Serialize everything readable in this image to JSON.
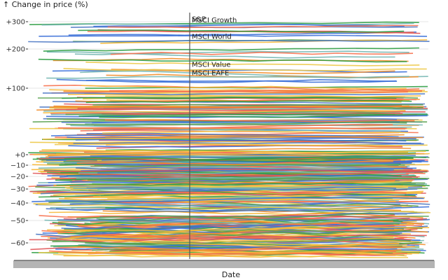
{
  "chart_data": {
    "type": "line",
    "title": "",
    "ylabel": "↑ Change in price (%)",
    "xlabel": "Date",
    "ylim": [
      -70,
      330
    ],
    "y_scale": "piecewise-compressed",
    "yticks": [
      {
        "value": 300,
        "label": "+300"
      },
      {
        "value": 200,
        "label": "+200"
      },
      {
        "value": 100,
        "label": "+100"
      },
      {
        "value": 0,
        "label": "+0"
      },
      {
        "value": -10,
        "label": "−10"
      },
      {
        "value": -20,
        "label": "−20"
      },
      {
        "value": -30,
        "label": "−30"
      },
      {
        "value": -40,
        "label": "−40"
      },
      {
        "value": -50,
        "label": "−50"
      },
      {
        "value": -60,
        "label": "−60"
      }
    ],
    "grid": true,
    "legend": "none",
    "x_tick_labels": "dense, illegible",
    "series_count_estimate": 400,
    "series_colors": [
      "#4e79c4",
      "#f28e2b",
      "#e15759",
      "#59a14f",
      "#76b7b2",
      "#edc948",
      "#f7714f",
      "#2f9e44",
      "#3a6fd8",
      "#f6b93b"
    ],
    "highlight_date_line": true,
    "annotations": [
      {
        "label": "S&P",
        "y": 310
      },
      {
        "label": "MSCI Growth",
        "y": 305
      },
      {
        "label": "MSCI World",
        "y": 245
      },
      {
        "label": "MSCI Value",
        "y": 160
      },
      {
        "label": "MSCI EAFE",
        "y": 138
      }
    ]
  }
}
